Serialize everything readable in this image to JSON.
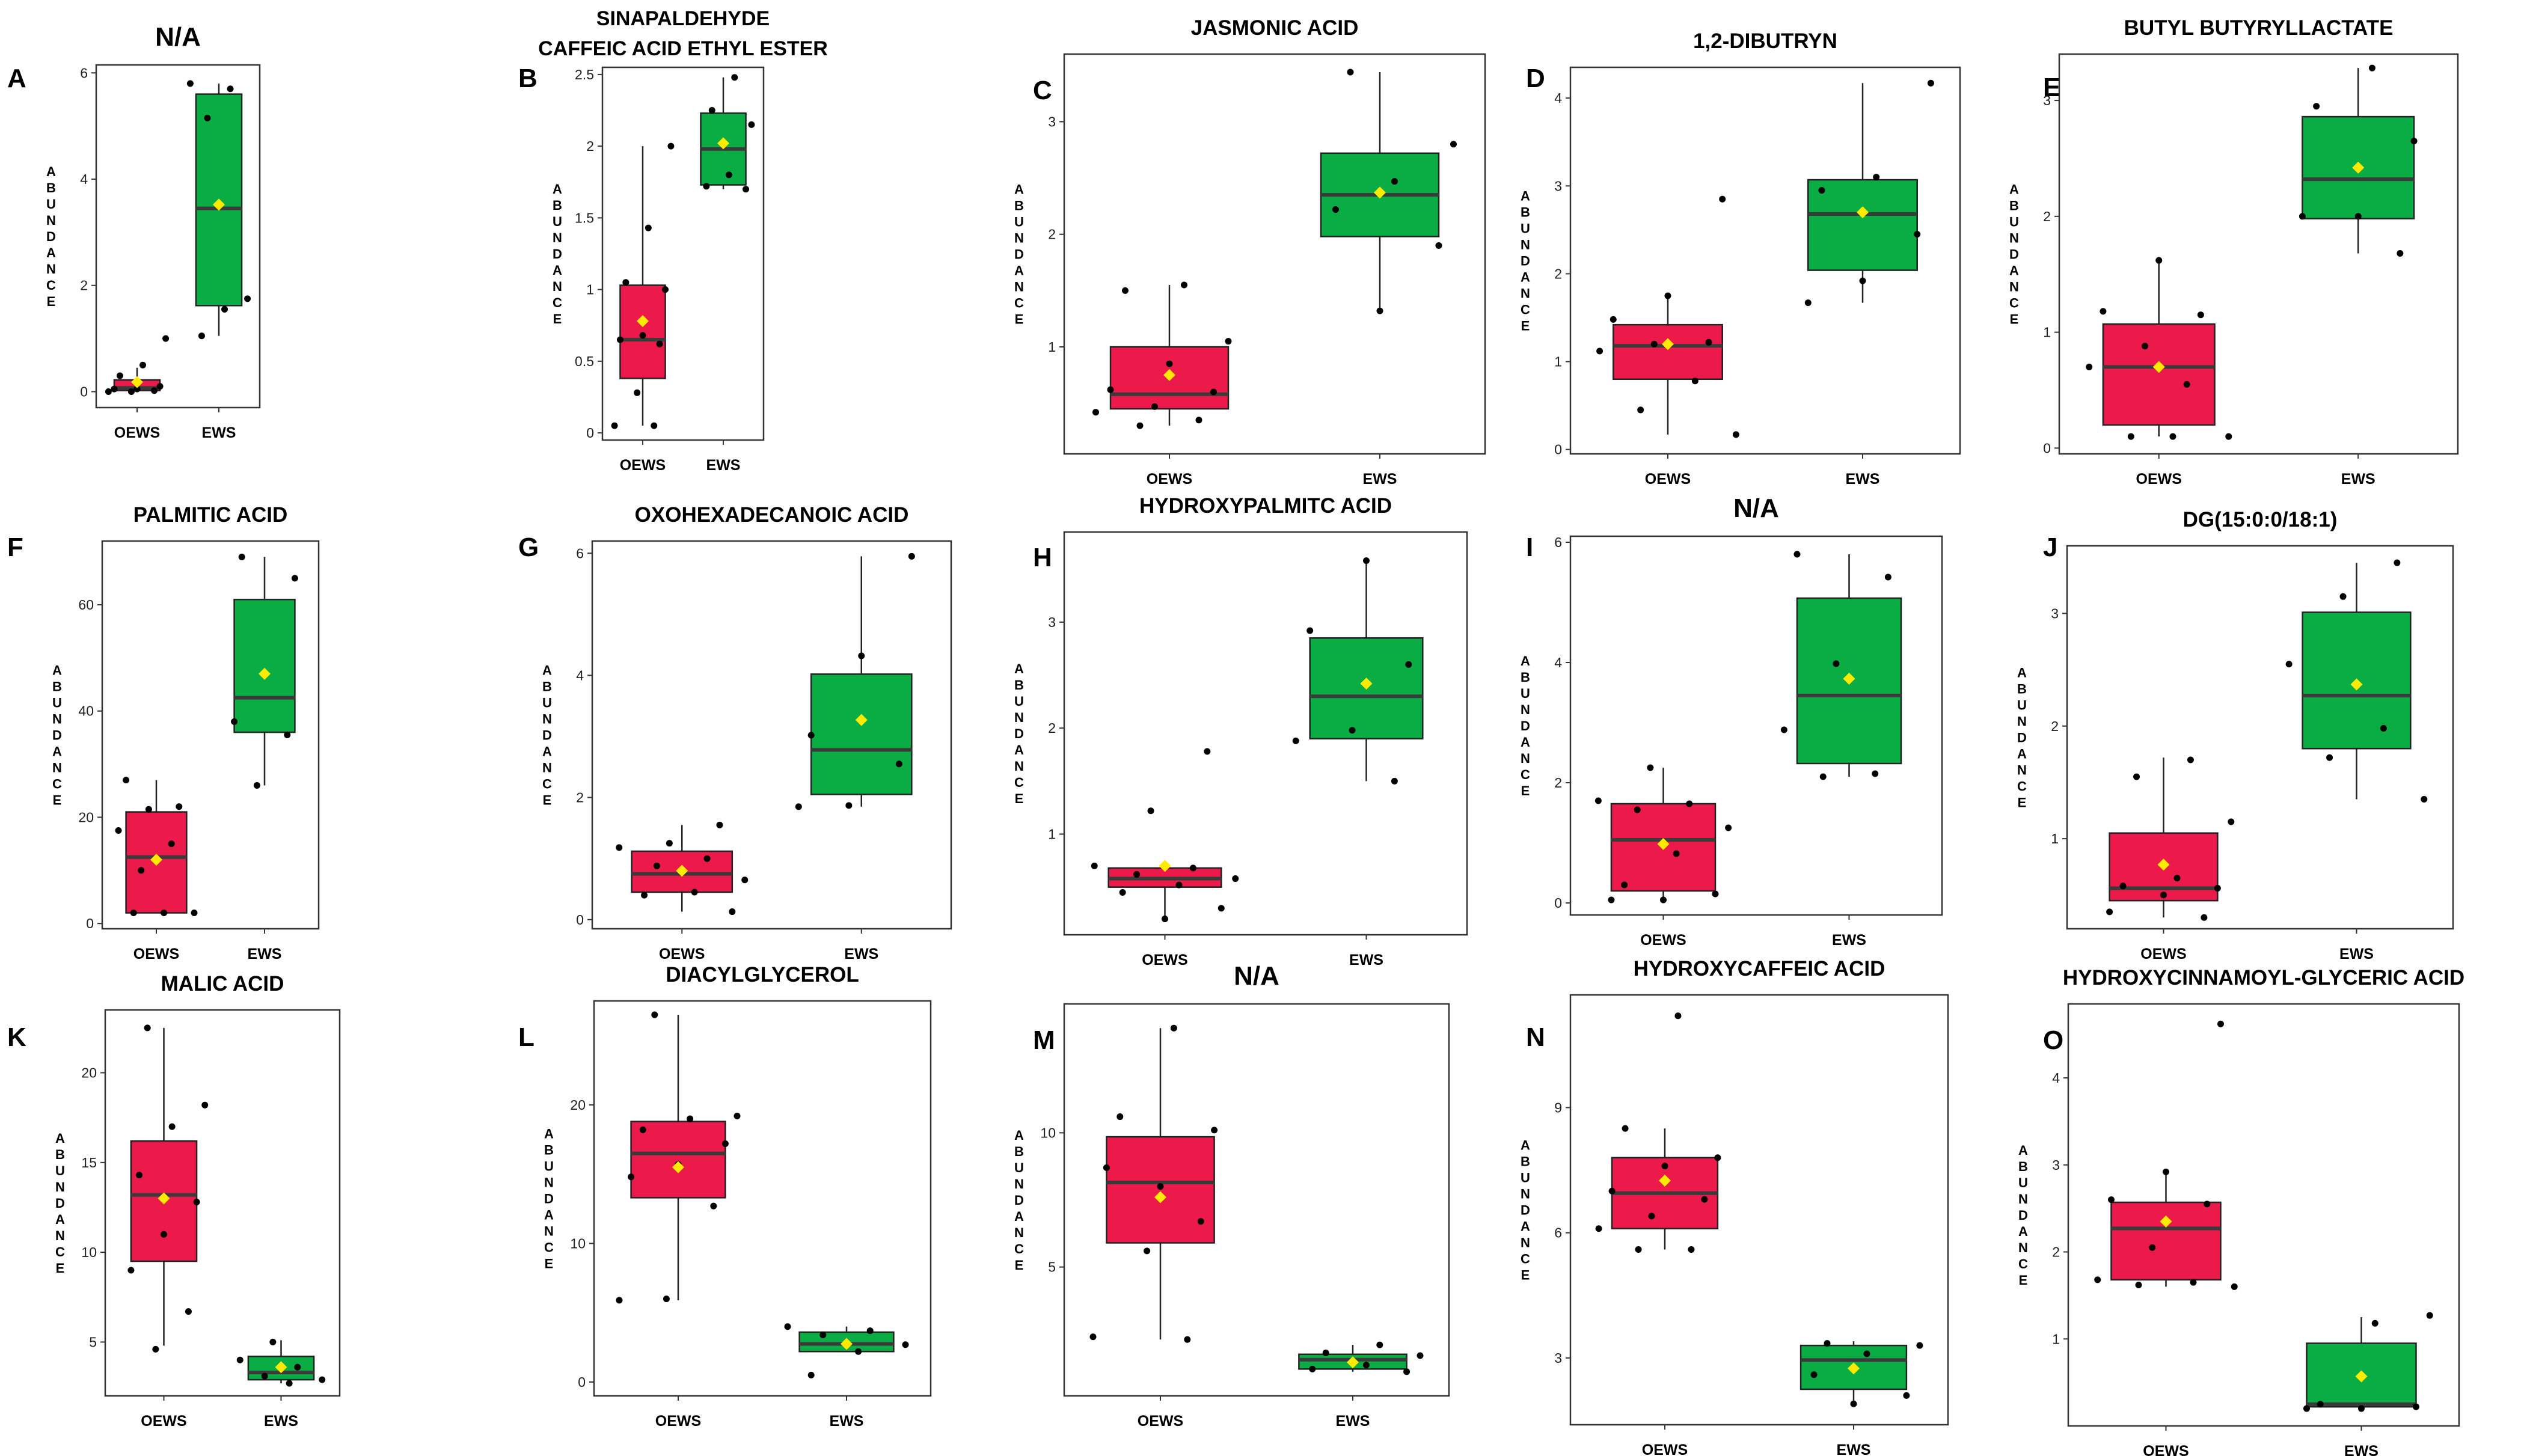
{
  "figure": {
    "ylabel_letters": [
      "A",
      "B",
      "U",
      "N",
      "D",
      "A",
      "N",
      "C",
      "E"
    ],
    "colors": {
      "oews_fill": "#EC1A4B",
      "ews_fill": "#0AAD44",
      "median_line": "#3a3a3a",
      "mean_marker": "#FFEA00",
      "points": "#000000",
      "panel_border": "#333333"
    }
  },
  "chart_data": [
    {
      "type": "box",
      "panel": "A",
      "title": [
        "N/A"
      ],
      "ylabel": "ABUNDANCE",
      "categories": [
        "OEWS",
        "EWS"
      ],
      "yticks": [
        0,
        2,
        4,
        6
      ],
      "ylim": [
        -0.3,
        6.15
      ],
      "boxes": [
        {
          "q1": 0.02,
          "median": 0.07,
          "q3": 0.22,
          "wlo": 0.0,
          "whi": 0.45,
          "mean": 0.18,
          "points": [
            0.0,
            0.0,
            0.02,
            0.05,
            0.05,
            0.1,
            0.3,
            0.5,
            1.0
          ]
        },
        {
          "q1": 1.62,
          "median": 3.45,
          "q3": 5.6,
          "wlo": 1.05,
          "whi": 5.8,
          "mean": 3.52,
          "points": [
            1.05,
            1.55,
            1.75,
            5.15,
            5.7,
            5.8
          ]
        }
      ]
    },
    {
      "type": "box",
      "panel": "B",
      "title": [
        "SINAPALDEHYDE",
        "CAFFEIC ACID ETHYL ESTER"
      ],
      "ylabel": "ABUNDANCE",
      "categories": [
        "OEWS",
        "EWS"
      ],
      "yticks": [
        0.0,
        0.5,
        1.0,
        1.5,
        2.0,
        2.5
      ],
      "ylim": [
        -0.05,
        2.55
      ],
      "boxes": [
        {
          "q1": 0.38,
          "median": 0.65,
          "q3": 1.03,
          "wlo": 0.05,
          "whi": 2.0,
          "mean": 0.78,
          "points": [
            0.05,
            0.05,
            0.28,
            0.62,
            0.65,
            0.68,
            1.0,
            1.05,
            1.43,
            2.0
          ]
        },
        {
          "q1": 1.73,
          "median": 1.98,
          "q3": 2.23,
          "wlo": 1.7,
          "whi": 2.48,
          "mean": 2.02,
          "points": [
            1.7,
            1.72,
            1.8,
            2.15,
            2.25,
            2.48
          ]
        }
      ]
    },
    {
      "type": "box",
      "panel": "C",
      "title": [
        "JASMONIC ACID"
      ],
      "ylabel": "ABUNDANCE",
      "categories": [
        "OEWS",
        "EWS"
      ],
      "yticks": [
        1,
        2,
        3
      ],
      "ylim": [
        0.05,
        3.6
      ],
      "boxes": [
        {
          "q1": 0.45,
          "median": 0.58,
          "q3": 1.0,
          "wlo": 0.3,
          "whi": 1.55,
          "mean": 0.75,
          "points": [
            0.3,
            0.35,
            0.42,
            0.47,
            0.6,
            0.62,
            0.85,
            1.05,
            1.5,
            1.55
          ]
        },
        {
          "q1": 1.98,
          "median": 2.35,
          "q3": 2.72,
          "wlo": 1.32,
          "whi": 3.44,
          "mean": 2.37,
          "points": [
            1.32,
            1.9,
            2.22,
            2.47,
            2.8,
            3.44
          ]
        }
      ]
    },
    {
      "type": "box",
      "panel": "D",
      "title": [
        "1,2-DIBUTRYN"
      ],
      "ylabel": "ABUNDANCE",
      "categories": [
        "OEWS",
        "EWS"
      ],
      "yticks": [
        0,
        1,
        2,
        3,
        4
      ],
      "ylim": [
        -0.05,
        4.35
      ],
      "boxes": [
        {
          "q1": 0.8,
          "median": 1.18,
          "q3": 1.42,
          "wlo": 0.17,
          "whi": 1.73,
          "mean": 1.2,
          "points": [
            0.17,
            0.45,
            0.78,
            1.12,
            1.2,
            1.22,
            1.48,
            1.75,
            2.85
          ]
        },
        {
          "q1": 2.04,
          "median": 2.68,
          "q3": 3.07,
          "wlo": 1.67,
          "whi": 4.17,
          "mean": 2.7,
          "points": [
            1.67,
            1.92,
            2.45,
            2.95,
            3.1,
            4.17
          ]
        }
      ]
    },
    {
      "type": "box",
      "panel": "E",
      "title": [
        "BUTYL BUTYRYLLACTATE"
      ],
      "ylabel": "ABUNDANCE",
      "categories": [
        "OEWS",
        "EWS"
      ],
      "yticks": [
        0,
        1,
        2,
        3
      ],
      "ylim": [
        -0.05,
        3.4
      ],
      "boxes": [
        {
          "q1": 0.2,
          "median": 0.7,
          "q3": 1.07,
          "wlo": 0.1,
          "whi": 1.62,
          "mean": 0.7,
          "points": [
            0.1,
            0.1,
            0.1,
            0.55,
            0.7,
            0.88,
            1.15,
            1.18,
            1.62
          ]
        },
        {
          "q1": 1.98,
          "median": 2.32,
          "q3": 2.86,
          "wlo": 1.68,
          "whi": 3.28,
          "mean": 2.42,
          "points": [
            1.68,
            2.0,
            2.0,
            2.65,
            2.95,
            3.28
          ]
        }
      ]
    },
    {
      "type": "box",
      "panel": "F",
      "title": [
        "PALMITIC ACID"
      ],
      "ylabel": "ABUNDANCE",
      "categories": [
        "OEWS",
        "EWS"
      ],
      "yticks": [
        0,
        20,
        40,
        60
      ],
      "ylim": [
        -1,
        72
      ],
      "boxes": [
        {
          "q1": 2,
          "median": 12.5,
          "q3": 21,
          "wlo": 2,
          "whi": 27,
          "mean": 12,
          "points": [
            2,
            2,
            2,
            10,
            15,
            17.5,
            21.5,
            22,
            27
          ]
        },
        {
          "q1": 36,
          "median": 42.5,
          "q3": 61,
          "wlo": 26,
          "whi": 69,
          "mean": 47,
          "points": [
            26,
            35.5,
            38,
            47,
            65,
            69
          ]
        }
      ]
    },
    {
      "type": "box",
      "panel": "G",
      "title": [
        "OXOHEXADECANOIC ACID"
      ],
      "ylabel": "ABUNDANCE",
      "categories": [
        "OEWS",
        "EWS"
      ],
      "yticks": [
        0,
        2,
        4,
        6
      ],
      "ylim": [
        -0.15,
        6.2
      ],
      "boxes": [
        {
          "q1": 0.45,
          "median": 0.75,
          "q3": 1.12,
          "wlo": 0.13,
          "whi": 1.55,
          "mean": 0.8,
          "points": [
            0.13,
            0.4,
            0.45,
            0.65,
            0.88,
            1.0,
            1.18,
            1.25,
            1.55
          ]
        },
        {
          "q1": 2.05,
          "median": 2.78,
          "q3": 4.02,
          "wlo": 1.85,
          "whi": 5.95,
          "mean": 3.27,
          "points": [
            1.85,
            1.87,
            2.55,
            3.02,
            4.32,
            5.95
          ]
        }
      ]
    },
    {
      "type": "box",
      "panel": "H",
      "title": [
        "HYDROXYPALMITC ACID"
      ],
      "ylabel": "ABUNDANCE",
      "categories": [
        "OEWS",
        "EWS"
      ],
      "yticks": [
        1,
        2,
        3
      ],
      "ylim": [
        0.05,
        3.85
      ],
      "boxes": [
        {
          "q1": 0.5,
          "median": 0.58,
          "q3": 0.68,
          "wlo": 0.2,
          "whi": 0.7,
          "mean": 0.7,
          "points": [
            0.2,
            0.3,
            0.45,
            0.52,
            0.58,
            0.62,
            0.68,
            0.7,
            1.22,
            1.78
          ]
        },
        {
          "q1": 1.9,
          "median": 2.3,
          "q3": 2.85,
          "wlo": 1.5,
          "whi": 3.58,
          "mean": 2.42,
          "points": [
            1.5,
            1.88,
            1.98,
            2.6,
            2.92,
            3.58
          ]
        }
      ]
    },
    {
      "type": "box",
      "panel": "I",
      "title": [
        "N/A"
      ],
      "ylabel": "ABUNDANCE",
      "categories": [
        "OEWS",
        "EWS"
      ],
      "yticks": [
        0,
        2,
        4,
        6
      ],
      "ylim": [
        -0.2,
        6.1
      ],
      "boxes": [
        {
          "q1": 0.2,
          "median": 1.05,
          "q3": 1.65,
          "wlo": 0.05,
          "whi": 2.25,
          "mean": 0.98,
          "points": [
            0.05,
            0.05,
            0.15,
            0.3,
            0.82,
            1.25,
            1.55,
            1.65,
            1.7,
            2.25
          ]
        },
        {
          "q1": 2.32,
          "median": 3.45,
          "q3": 5.07,
          "wlo": 2.1,
          "whi": 5.8,
          "mean": 3.73,
          "points": [
            2.1,
            2.15,
            2.88,
            3.98,
            5.42,
            5.8
          ]
        }
      ]
    },
    {
      "type": "box",
      "panel": "J",
      "title": [
        "DG(15:0:0/18:1)"
      ],
      "ylabel": "ABUNDANCE",
      "categories": [
        "OEWS",
        "EWS"
      ],
      "yticks": [
        1,
        2,
        3
      ],
      "ylim": [
        0.2,
        3.6
      ],
      "boxes": [
        {
          "q1": 0.45,
          "median": 0.56,
          "q3": 1.05,
          "wlo": 0.3,
          "whi": 1.72,
          "mean": 0.77,
          "points": [
            0.3,
            0.35,
            0.5,
            0.56,
            0.58,
            0.65,
            1.15,
            1.55,
            1.7
          ]
        },
        {
          "q1": 1.8,
          "median": 2.27,
          "q3": 3.01,
          "wlo": 1.35,
          "whi": 3.45,
          "mean": 2.37,
          "points": [
            1.35,
            1.72,
            1.98,
            2.55,
            3.15,
            3.45
          ]
        }
      ]
    },
    {
      "type": "box",
      "panel": "K",
      "title": [
        "MALIC ACID"
      ],
      "ylabel": "ABUNDANCE",
      "categories": [
        "OEWS",
        "EWS"
      ],
      "yticks": [
        5,
        10,
        15,
        20
      ],
      "ylim": [
        2,
        23.5
      ],
      "boxes": [
        {
          "q1": 9.5,
          "median": 13.2,
          "q3": 16.2,
          "wlo": 4.8,
          "whi": 22.5,
          "mean": 13,
          "points": [
            4.6,
            6.7,
            9,
            11,
            12.8,
            14.3,
            17,
            18.2,
            22.5
          ]
        },
        {
          "q1": 2.9,
          "median": 3.3,
          "q3": 4.2,
          "wlo": 2.7,
          "whi": 5.1,
          "mean": 3.6,
          "points": [
            2.7,
            2.9,
            3.1,
            3.6,
            4.0,
            5.0
          ]
        }
      ]
    },
    {
      "type": "box",
      "panel": "L",
      "title": [
        "DIACYLGLYCEROL"
      ],
      "ylabel": "ABUNDANCE",
      "categories": [
        "OEWS",
        "EWS"
      ],
      "yticks": [
        0,
        10,
        20
      ],
      "ylim": [
        -1,
        27.5
      ],
      "boxes": [
        {
          "q1": 13.3,
          "median": 16.5,
          "q3": 18.8,
          "wlo": 5.9,
          "whi": 26.5,
          "mean": 15.5,
          "points": [
            5.9,
            6,
            12.7,
            14.8,
            15.7,
            17.2,
            18.2,
            19,
            19.2,
            26.5
          ]
        },
        {
          "q1": 2.2,
          "median": 2.75,
          "q3": 3.6,
          "wlo": 2.2,
          "whi": 4.0,
          "mean": 2.75,
          "points": [
            0.5,
            2.2,
            2.7,
            3.4,
            3.7,
            4.0
          ]
        }
      ]
    },
    {
      "type": "box",
      "panel": "M",
      "title": [
        "N/A"
      ],
      "ylabel": "ABUNDANCE",
      "categories": [
        "OEWS",
        "EWS"
      ],
      "yticks": [
        5,
        10
      ],
      "ylim": [
        0.2,
        14.8
      ],
      "boxes": [
        {
          "q1": 5.9,
          "median": 8.15,
          "q3": 9.85,
          "wlo": 2.3,
          "whi": 13.9,
          "mean": 7.6,
          "points": [
            2.3,
            2.4,
            5.6,
            6.7,
            8.7,
            8.0,
            10.1,
            10.6,
            13.9
          ]
        },
        {
          "q1": 1.2,
          "median": 1.55,
          "q3": 1.75,
          "wlo": 1.1,
          "whi": 2.1,
          "mean": 1.45,
          "points": [
            1.1,
            1.2,
            1.35,
            1.7,
            1.8,
            2.1
          ]
        }
      ]
    },
    {
      "type": "box",
      "panel": "N",
      "title": [
        "HYDROXYCAFFEIC ACID"
      ],
      "ylabel": "ABUNDANCE",
      "categories": [
        "OEWS",
        "EWS"
      ],
      "yticks": [
        3,
        6,
        9
      ],
      "ylim": [
        1.4,
        11.7
      ],
      "boxes": [
        {
          "q1": 6.1,
          "median": 6.95,
          "q3": 7.8,
          "wlo": 5.6,
          "whi": 8.5,
          "mean": 7.25,
          "points": [
            5.6,
            5.6,
            6.1,
            6.4,
            6.8,
            7.0,
            7.6,
            7.8,
            8.5,
            11.2
          ]
        },
        {
          "q1": 2.25,
          "median": 2.95,
          "q3": 3.3,
          "wlo": 1.9,
          "whi": 3.4,
          "mean": 2.75,
          "points": [
            1.9,
            2.1,
            2.6,
            3.1,
            3.3,
            3.35
          ]
        }
      ]
    },
    {
      "type": "box",
      "panel": "O",
      "title": [
        "HYDROXYCINNAMOYL-GLYCERIC ACID"
      ],
      "ylabel": "ABUNDANCE",
      "categories": [
        "OEWS",
        "EWS"
      ],
      "yticks": [
        1,
        2,
        3,
        4
      ],
      "ylim": [
        0,
        4.85
      ],
      "boxes": [
        {
          "q1": 1.68,
          "median": 2.27,
          "q3": 2.57,
          "wlo": 1.6,
          "whi": 2.92,
          "mean": 2.35,
          "points": [
            1.6,
            1.62,
            1.65,
            1.68,
            2.05,
            2.55,
            2.6,
            2.92,
            4.62
          ]
        },
        {
          "q1": 0.22,
          "median": 0.25,
          "q3": 0.95,
          "wlo": 0.2,
          "whi": 1.25,
          "mean": 0.57,
          "points": [
            0.2,
            0.2,
            0.22,
            0.25,
            1.18,
            1.27
          ]
        }
      ]
    }
  ]
}
